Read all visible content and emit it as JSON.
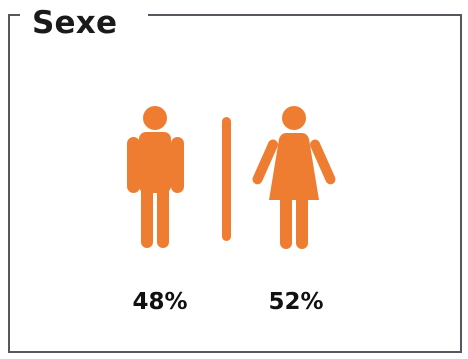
{
  "title": "Sexe",
  "chart_data": {
    "type": "pictogram",
    "series": [
      {
        "name": "",
        "icon": "male-figure-icon",
        "value": 48,
        "label": "48%"
      },
      {
        "name": "",
        "icon": "female-figure-icon",
        "value": 52,
        "label": "52%"
      }
    ],
    "unit": "%"
  },
  "colors": {
    "accent": "#EE7D32",
    "frame": "#5C5560",
    "text": "#111111"
  }
}
